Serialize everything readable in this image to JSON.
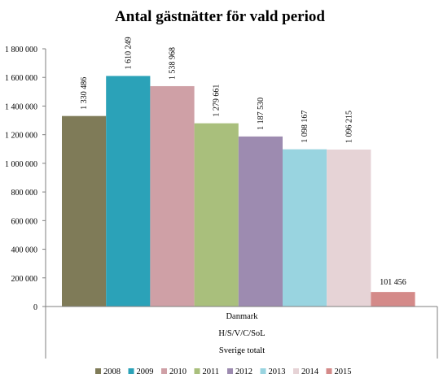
{
  "chart_data": {
    "type": "bar",
    "title": "Antal gästnätter för vald period",
    "category_labels": [
      "Danmark",
      "H/S/V/C/SoL",
      "Sverige totalt"
    ],
    "y_ticks": [
      "0",
      "200 000",
      "400 000",
      "600 000",
      "800 000",
      "1 000 000",
      "1 200 000",
      "1 400 000",
      "1 600 000",
      "1 800 000"
    ],
    "ylim": [
      0,
      1800000
    ],
    "grid": false,
    "legend_position": "bottom",
    "series": [
      {
        "name": "2008",
        "value": 1330486,
        "label": "1 330 486",
        "color": "#7f7b58"
      },
      {
        "name": "2009",
        "value": 1610249,
        "label": "1 610 249",
        "color": "#2ba2b8"
      },
      {
        "name": "2010",
        "value": 1538968,
        "label": "1 538 968",
        "color": "#cfa0a6"
      },
      {
        "name": "2011",
        "value": 1279661,
        "label": "1 279 661",
        "color": "#a9bf7c"
      },
      {
        "name": "2012",
        "value": 1187530,
        "label": "1 187 530",
        "color": "#9d8bb0"
      },
      {
        "name": "2013",
        "value": 1098167,
        "label": "1 098 167",
        "color": "#99d4e0"
      },
      {
        "name": "2014",
        "value": 1096215,
        "label": "1 096 215",
        "color": "#e6d3d6"
      },
      {
        "name": "2015",
        "value": 101456,
        "label": "101 456",
        "color": "#d48a89"
      }
    ]
  }
}
